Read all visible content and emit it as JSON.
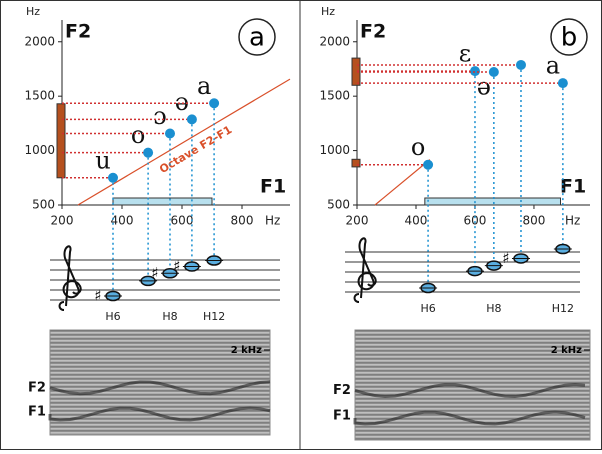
{
  "chart_data": [
    {
      "type": "scatter",
      "panel": "a",
      "x_label": "F1",
      "y_label": "F2",
      "x_unit": "Hz",
      "y_unit": "Hz",
      "x": [
        370,
        487,
        560,
        633,
        707
      ],
      "y": [
        750,
        981,
        1157,
        1287,
        1435
      ],
      "labels": [
        "u",
        "o",
        "ɔ",
        "ə",
        "a"
      ],
      "color": "#1a8fd0",
      "xlim": [
        200,
        960
      ],
      "ylim": [
        500,
        2200
      ],
      "xticks": [
        200,
        400,
        600,
        800
      ],
      "yticks": [
        500,
        1000,
        1500,
        2000
      ],
      "reference_line": {
        "label": "Octave F2-F1",
        "x": [
          253,
          960
        ],
        "y": [
          500,
          1657
        ],
        "color": "#d9502a"
      },
      "f1_range": [
        370,
        700
      ],
      "f2_range": [
        750,
        1430
      ],
      "accidentals": [
        "♯",
        null,
        "♯",
        "♯",
        null
      ],
      "harmonic_labels": [
        "H6",
        "H8",
        "H12"
      ],
      "spectrogram": {
        "labels": [
          "F2",
          "F1"
        ],
        "tick": "2 kHz"
      }
    },
    {
      "type": "scatter",
      "panel": "b",
      "x_label": "F1",
      "y_label": "F2",
      "x_unit": "Hz",
      "y_unit": "Hz",
      "x": [
        441,
        600,
        664,
        756,
        898
      ],
      "y": [
        870,
        1730,
        1722,
        1787,
        1620
      ],
      "labels": [
        "o",
        "ε",
        "ə",
        null,
        "a"
      ],
      "color": "#1a8fd0",
      "xlim": [
        200,
        990
      ],
      "ylim": [
        500,
        2200
      ],
      "xticks": [
        200,
        400,
        600,
        800
      ],
      "yticks": [
        500,
        1000,
        1500,
        2000
      ],
      "reference_line": {
        "x": [
          261,
          447
        ],
        "y": [
          500,
          917
        ],
        "color": "#d9502a"
      },
      "f1_range": [
        430,
        890
      ],
      "f2_range_bars": [
        [
          1600,
          1850
        ],
        [
          850,
          920
        ]
      ],
      "accidentals": [
        null,
        null,
        null,
        "♯",
        null
      ],
      "harmonic_labels": [
        "H6",
        "H8",
        "H12"
      ],
      "spectrogram": {
        "labels": [
          "F2",
          "F1"
        ],
        "tick": "2 kHz"
      }
    }
  ]
}
